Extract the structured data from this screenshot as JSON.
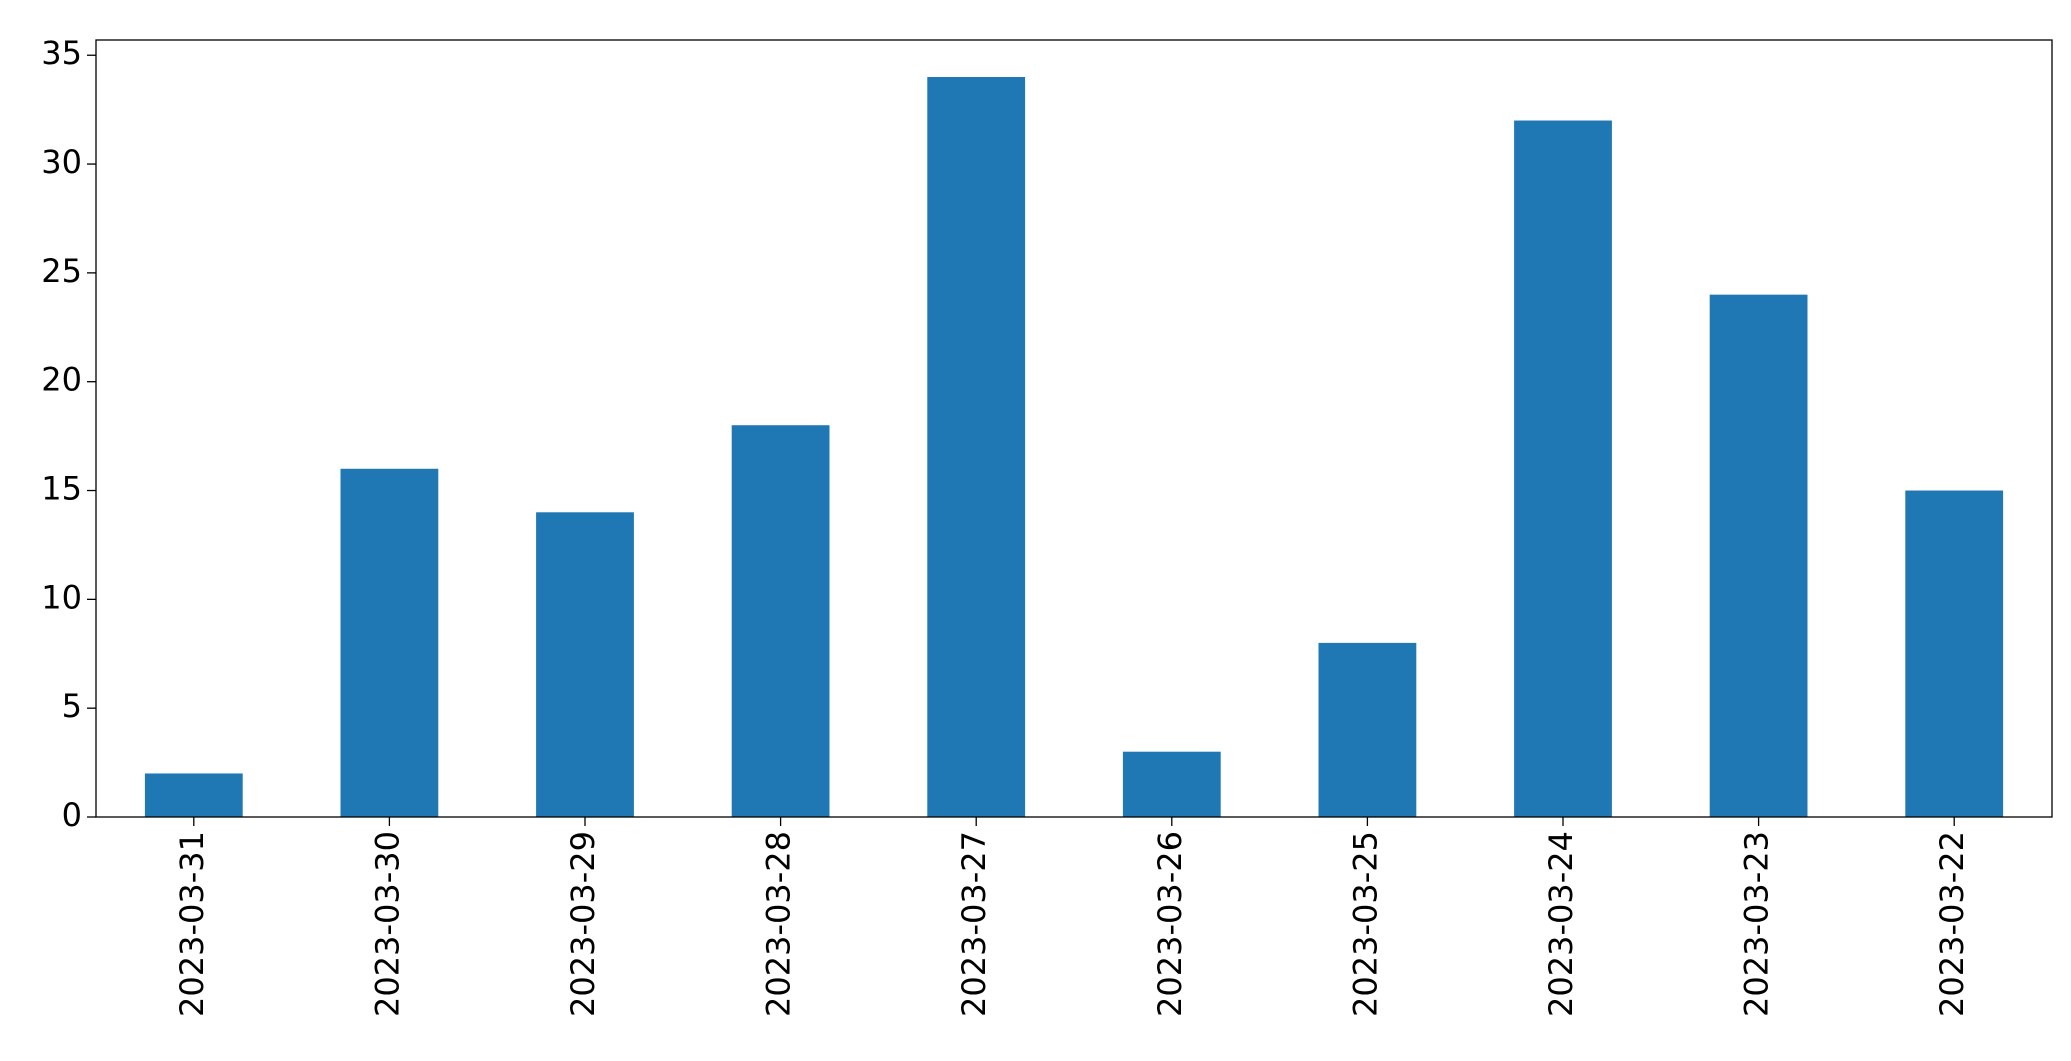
{
  "chart_data": {
    "type": "bar",
    "categories": [
      "2023-03-31",
      "2023-03-30",
      "2023-03-29",
      "2023-03-28",
      "2023-03-27",
      "2023-03-26",
      "2023-03-25",
      "2023-03-24",
      "2023-03-23",
      "2023-03-22"
    ],
    "values": [
      2,
      16,
      14,
      18,
      34,
      3,
      8,
      32,
      24,
      15
    ],
    "color": "#1f77b4",
    "ylim": [
      0,
      35.7
    ],
    "yticks": [
      0,
      5,
      10,
      15,
      20,
      25,
      30,
      35
    ],
    "grid": false
  }
}
